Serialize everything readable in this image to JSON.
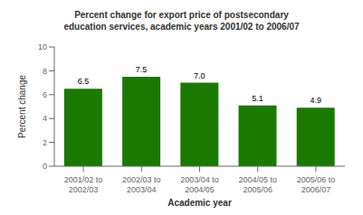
{
  "chart_data": {
    "type": "bar",
    "title": "Percent change for export price of postsecondary\neducation services, academic years 2001/02 to 2006/07",
    "xlabel": "Academic year",
    "ylabel": "Percent change",
    "categories": [
      "2001/02 to\n2002/03",
      "2002/03 to\n2003/04",
      "2003/04 to\n2004/05",
      "2004/05 to\n2005/06",
      "2005/06 to\n2006/07"
    ],
    "values": [
      6.5,
      7.5,
      7.0,
      5.1,
      4.9
    ],
    "value_labels": [
      "6.5",
      "7.5",
      "7.0",
      "5.1",
      "4.9"
    ],
    "color": "#1a7a00",
    "ylim": [
      0,
      10
    ],
    "yticks": [
      0,
      2,
      4,
      6,
      8,
      10
    ],
    "grid": false,
    "data_labels": true
  }
}
